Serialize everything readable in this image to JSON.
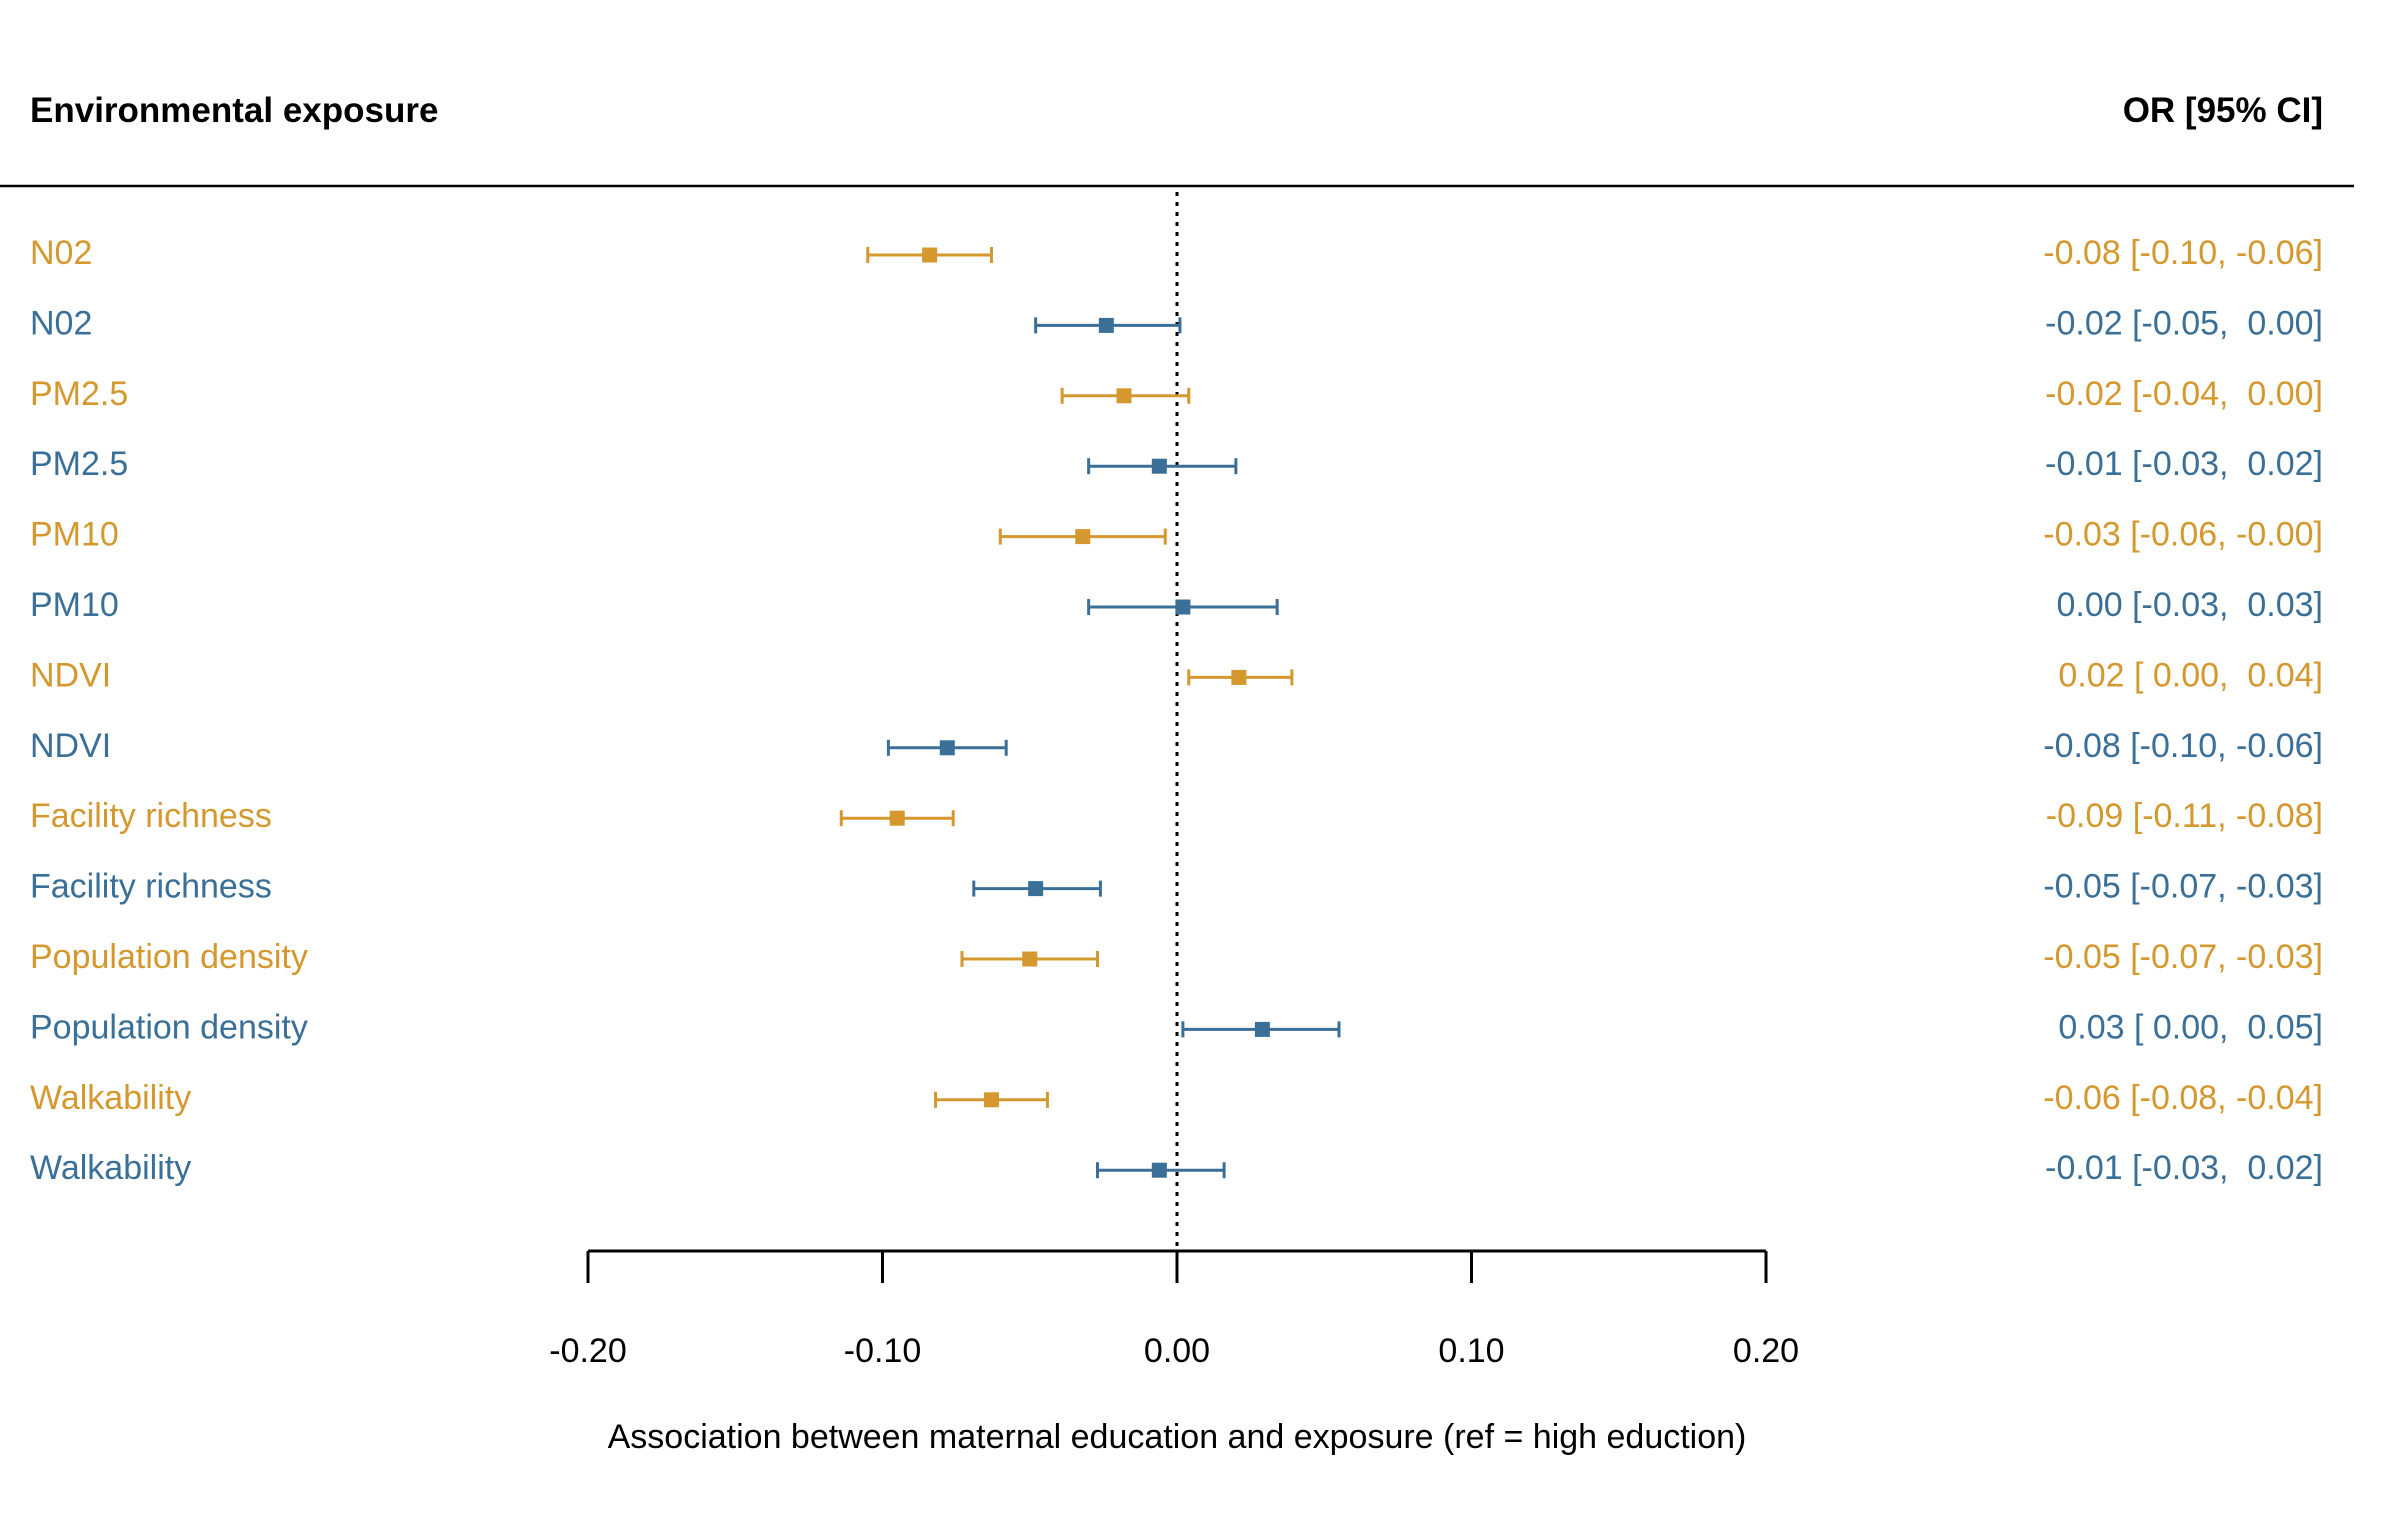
{
  "chart_data": {
    "type": "forest",
    "header": {
      "left": "Environmental exposure",
      "right": "OR [95% CI]"
    },
    "xlabel": "Association between maternal education and exposure (ref = high eduction)",
    "xlim": [
      -0.2,
      0.2
    ],
    "xticks": [
      -0.2,
      -0.1,
      0.0,
      0.1,
      0.2
    ],
    "xtick_labels": [
      "-0.20",
      "-0.10",
      "0.00",
      "0.10",
      "0.20"
    ],
    "reference_line": 0,
    "colors": {
      "orange": "#D4982F",
      "blue": "#3A6F98"
    },
    "rows": [
      {
        "label": "N02",
        "color": "orange",
        "est": -0.084,
        "lo": -0.105,
        "hi": -0.063,
        "text": "-0.08 [-0.10, -0.06]"
      },
      {
        "label": "N02",
        "color": "blue",
        "est": -0.024,
        "lo": -0.048,
        "hi": 0.001,
        "text": "-0.02 [-0.05,  0.00]"
      },
      {
        "label": "PM2.5",
        "color": "orange",
        "est": -0.018,
        "lo": -0.039,
        "hi": 0.004,
        "text": "-0.02 [-0.04,  0.00]"
      },
      {
        "label": "PM2.5",
        "color": "blue",
        "est": -0.006,
        "lo": -0.03,
        "hi": 0.02,
        "text": "-0.01 [-0.03,  0.02]"
      },
      {
        "label": "PM10",
        "color": "orange",
        "est": -0.032,
        "lo": -0.06,
        "hi": -0.004,
        "text": "-0.03 [-0.06, -0.00]"
      },
      {
        "label": "PM10",
        "color": "blue",
        "est": 0.002,
        "lo": -0.03,
        "hi": 0.034,
        "text": "0.00 [-0.03,  0.03]"
      },
      {
        "label": "NDVI",
        "color": "orange",
        "est": 0.021,
        "lo": 0.004,
        "hi": 0.039,
        "text": "0.02 [ 0.00,  0.04]"
      },
      {
        "label": "NDVI",
        "color": "blue",
        "est": -0.078,
        "lo": -0.098,
        "hi": -0.058,
        "text": "-0.08 [-0.10, -0.06]"
      },
      {
        "label": "Facility richness",
        "color": "orange",
        "est": -0.095,
        "lo": -0.114,
        "hi": -0.076,
        "text": "-0.09 [-0.11, -0.08]"
      },
      {
        "label": "Facility richness",
        "color": "blue",
        "est": -0.048,
        "lo": -0.069,
        "hi": -0.026,
        "text": "-0.05 [-0.07, -0.03]"
      },
      {
        "label": "Population density",
        "color": "orange",
        "est": -0.05,
        "lo": -0.073,
        "hi": -0.027,
        "text": "-0.05 [-0.07, -0.03]"
      },
      {
        "label": "Population density",
        "color": "blue",
        "est": 0.029,
        "lo": 0.002,
        "hi": 0.055,
        "text": "0.03 [ 0.00,  0.05]"
      },
      {
        "label": "Walkability",
        "color": "orange",
        "est": -0.063,
        "lo": -0.082,
        "hi": -0.044,
        "text": "-0.06 [-0.08, -0.04]"
      },
      {
        "label": "Walkability",
        "color": "blue",
        "est": -0.006,
        "lo": -0.027,
        "hi": 0.016,
        "text": "-0.01 [-0.03,  0.02]"
      }
    ]
  }
}
